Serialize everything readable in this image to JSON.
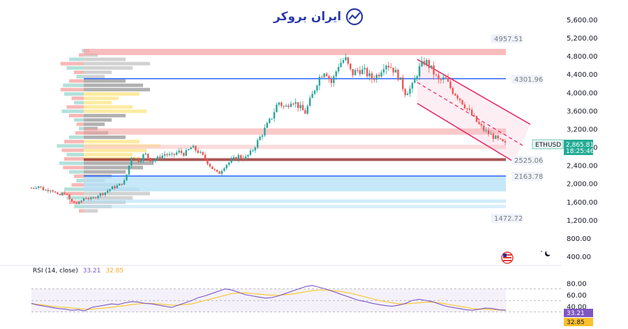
{
  "logo": {
    "text": "ایران بروکر"
  },
  "price_axis": {
    "ticks": [
      "5,600.00",
      "5,200.00",
      "4,800.00",
      "4,400.00",
      "4,000.00",
      "3,600.00",
      "3,200.00",
      "2,800.00",
      "2,400.00",
      "2,000.00",
      "1,600.00",
      "1,200.00",
      "800.00",
      "400.00"
    ]
  },
  "levels": {
    "top": "4957.51",
    "upper_blue": "4301.96",
    "support": "2525.06",
    "lower_blue": "2163.78",
    "bottom": "1472.72"
  },
  "price_badge": {
    "symbol": "ETHUSD",
    "price": "2,865.81",
    "countdown": "18:25:46"
  },
  "rsi": {
    "label": "RSI (14, close)",
    "value": "33.21",
    "ma_value": "32.85",
    "ticks": [
      "80.00",
      "60.00",
      "40.00"
    ]
  },
  "colors": {
    "up": "#26a69a",
    "down": "#ef5350",
    "channel": "#e91e63",
    "blue_line": "#2962ff",
    "rsi": "#7e57c2",
    "rsi_ma": "#f9c935",
    "badge": "#22ab94",
    "rsi_badge": "#7e57c2",
    "rsi_ma_badge": "#fbc02d"
  },
  "chart_data": [
    {
      "type": "candlestick",
      "title": "",
      "xlabel": "",
      "ylabel": "",
      "series_name": "ETHUSD",
      "ylim": [
        400,
        5600
      ],
      "y_ticks": [
        5600,
        5200,
        4800,
        4400,
        4000,
        3600,
        3200,
        2800,
        2400,
        2000,
        1600,
        1200,
        800,
        400
      ],
      "last_price": 2865.81,
      "path": [
        1900,
        1950,
        1850,
        1880,
        1720,
        1800,
        1600,
        1550,
        1700,
        1650,
        1750,
        1800,
        1900,
        1950,
        2050,
        2600,
        2500,
        2650,
        2500,
        2550,
        2650,
        2600,
        2700,
        2650,
        2800,
        2700,
        2550,
        2350,
        2200,
        2400,
        2500,
        2600,
        2550,
        2700,
        2950,
        3200,
        3450,
        3800,
        3650,
        3850,
        3700,
        3550,
        3900,
        4300,
        4500,
        4200,
        4600,
        4750,
        4400,
        4500,
        4450,
        4300,
        4400,
        4650,
        4550,
        4350,
        4000,
        4100,
        4500,
        4700,
        4500,
        4250,
        4300,
        4050,
        3900,
        3700,
        3500,
        3300,
        3150,
        3050,
        2950,
        2860
      ],
      "annotations": {
        "horizontal_levels": [
          4957.51,
          4301.96,
          2525.06,
          2163.78,
          1472.72
        ],
        "descending_channel": true
      }
    },
    {
      "type": "line",
      "title": "RSI (14, close)",
      "xlabel": "",
      "ylabel": "",
      "ylim": [
        20,
        90
      ],
      "y_ticks": [
        80,
        60,
        40
      ],
      "series": [
        {
          "name": "RSI",
          "last": 33.21,
          "values": [
            45,
            42,
            40,
            38,
            36,
            35,
            33,
            34,
            32,
            38,
            40,
            42,
            44,
            43,
            46,
            48,
            47,
            45,
            44,
            42,
            40,
            38,
            42,
            46,
            50,
            55,
            58,
            62,
            66,
            70,
            68,
            64,
            60,
            58,
            56,
            54,
            55,
            58,
            62,
            66,
            70,
            74,
            76,
            73,
            70,
            66,
            62,
            58,
            54,
            50,
            48,
            45,
            43,
            41,
            40,
            42,
            45,
            50,
            52,
            50,
            48,
            44,
            40,
            38,
            36,
            34,
            33,
            35,
            37,
            36,
            34,
            33.21
          ]
        },
        {
          "name": "RSI-based MA",
          "last": 32.85,
          "values": [
            44,
            43,
            42,
            40,
            39,
            38,
            37,
            36,
            35,
            35,
            36,
            37,
            38,
            40,
            41,
            43,
            44,
            45,
            45,
            44,
            43,
            42,
            42,
            43,
            44,
            47,
            50,
            53,
            56,
            59,
            62,
            63,
            63,
            62,
            61,
            60,
            59,
            59,
            60,
            61,
            63,
            65,
            67,
            68,
            68,
            67,
            66,
            64,
            62,
            59,
            56,
            53,
            50,
            48,
            46,
            44,
            44,
            45,
            46,
            47,
            47,
            46,
            44,
            42,
            40,
            38,
            36,
            35,
            35,
            34,
            33.5,
            32.85
          ]
        }
      ],
      "bands": [
        30,
        70
      ]
    }
  ]
}
